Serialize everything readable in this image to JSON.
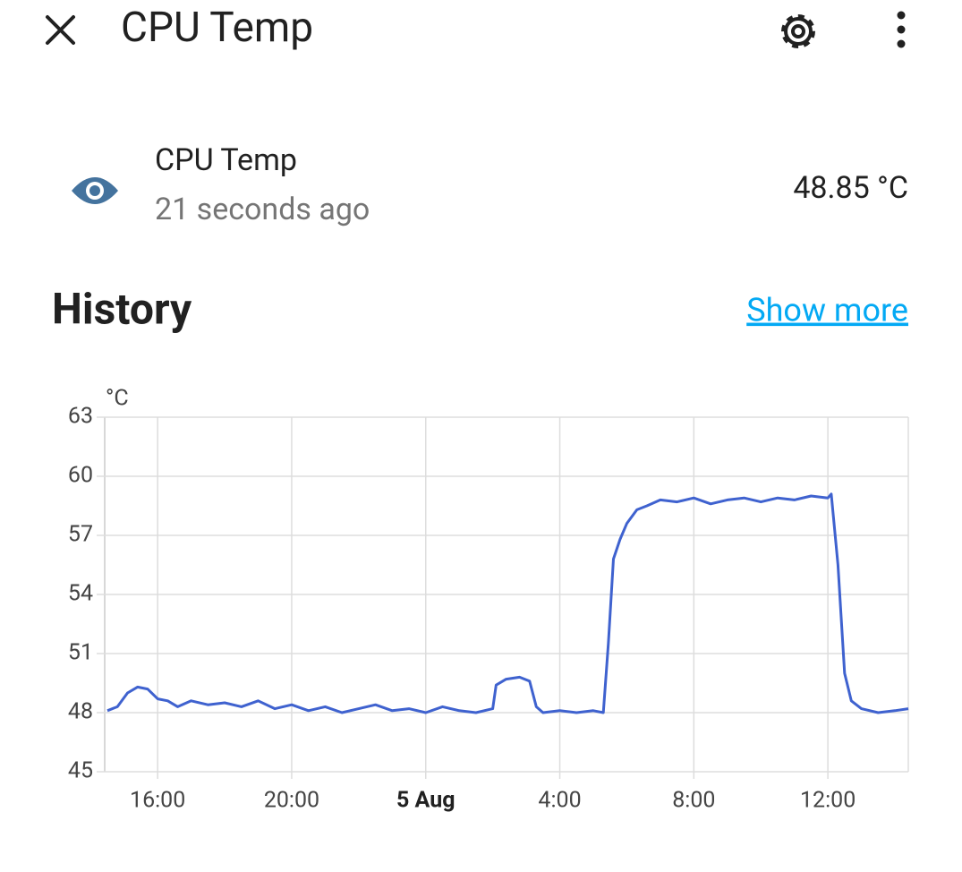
{
  "header": {
    "title": "CPU Temp"
  },
  "entity": {
    "name": "CPU Temp",
    "last_changed": "21 seconds ago",
    "state": "48.85 °C"
  },
  "history": {
    "title": "History",
    "link": "Show more"
  },
  "chart_data": {
    "type": "line",
    "y_label": "°C",
    "color": "#3f62cf",
    "grid": true,
    "x": [
      -9.5,
      -9.2,
      -8.9,
      -8.6,
      -8.3,
      -8.0,
      -7.7,
      -7.4,
      -7.0,
      -6.5,
      -6.0,
      -5.5,
      -5.0,
      -4.5,
      -4.0,
      -3.5,
      -3.0,
      -2.5,
      -2.0,
      -1.5,
      -1.0,
      -0.5,
      0,
      0.5,
      1.0,
      1.5,
      2.0,
      2.1,
      2.4,
      2.8,
      3.1,
      3.3,
      3.5,
      4.0,
      4.5,
      5.0,
      5.3,
      5.45,
      5.6,
      5.8,
      6.0,
      6.3,
      6.6,
      7.0,
      7.5,
      8.0,
      8.5,
      9.0,
      9.5,
      10.0,
      10.5,
      11.0,
      11.5,
      12.0,
      12.1,
      12.3,
      12.5,
      12.7,
      13.0,
      13.5,
      14.0,
      14.4
    ],
    "values": [
      48.1,
      48.3,
      49.0,
      49.3,
      49.2,
      48.7,
      48.6,
      48.3,
      48.6,
      48.4,
      48.5,
      48.3,
      48.6,
      48.2,
      48.4,
      48.1,
      48.3,
      48.0,
      48.2,
      48.4,
      48.1,
      48.2,
      48.0,
      48.3,
      48.1,
      48.0,
      48.2,
      49.4,
      49.7,
      49.8,
      49.6,
      48.3,
      48.0,
      48.1,
      48.0,
      48.1,
      48.0,
      51.5,
      55.8,
      56.8,
      57.6,
      58.3,
      58.5,
      58.8,
      58.7,
      58.9,
      58.6,
      58.8,
      58.9,
      58.7,
      58.9,
      58.8,
      59.0,
      58.9,
      59.1,
      55.5,
      50.0,
      48.6,
      48.2,
      48.0,
      48.1,
      48.2
    ],
    "xlim": [
      -9.58,
      14.4
    ],
    "xticks": [
      {
        "value": -8,
        "label": "16:00"
      },
      {
        "value": -4,
        "label": "20:00"
      },
      {
        "value": 0,
        "label": "5 Aug",
        "bold": true
      },
      {
        "value": 4,
        "label": "4:00"
      },
      {
        "value": 8,
        "label": "8:00"
      },
      {
        "value": 12,
        "label": "12:00"
      }
    ],
    "ylim": [
      45,
      63
    ],
    "yticks": [
      45,
      48,
      51,
      54,
      57,
      60,
      63
    ]
  }
}
